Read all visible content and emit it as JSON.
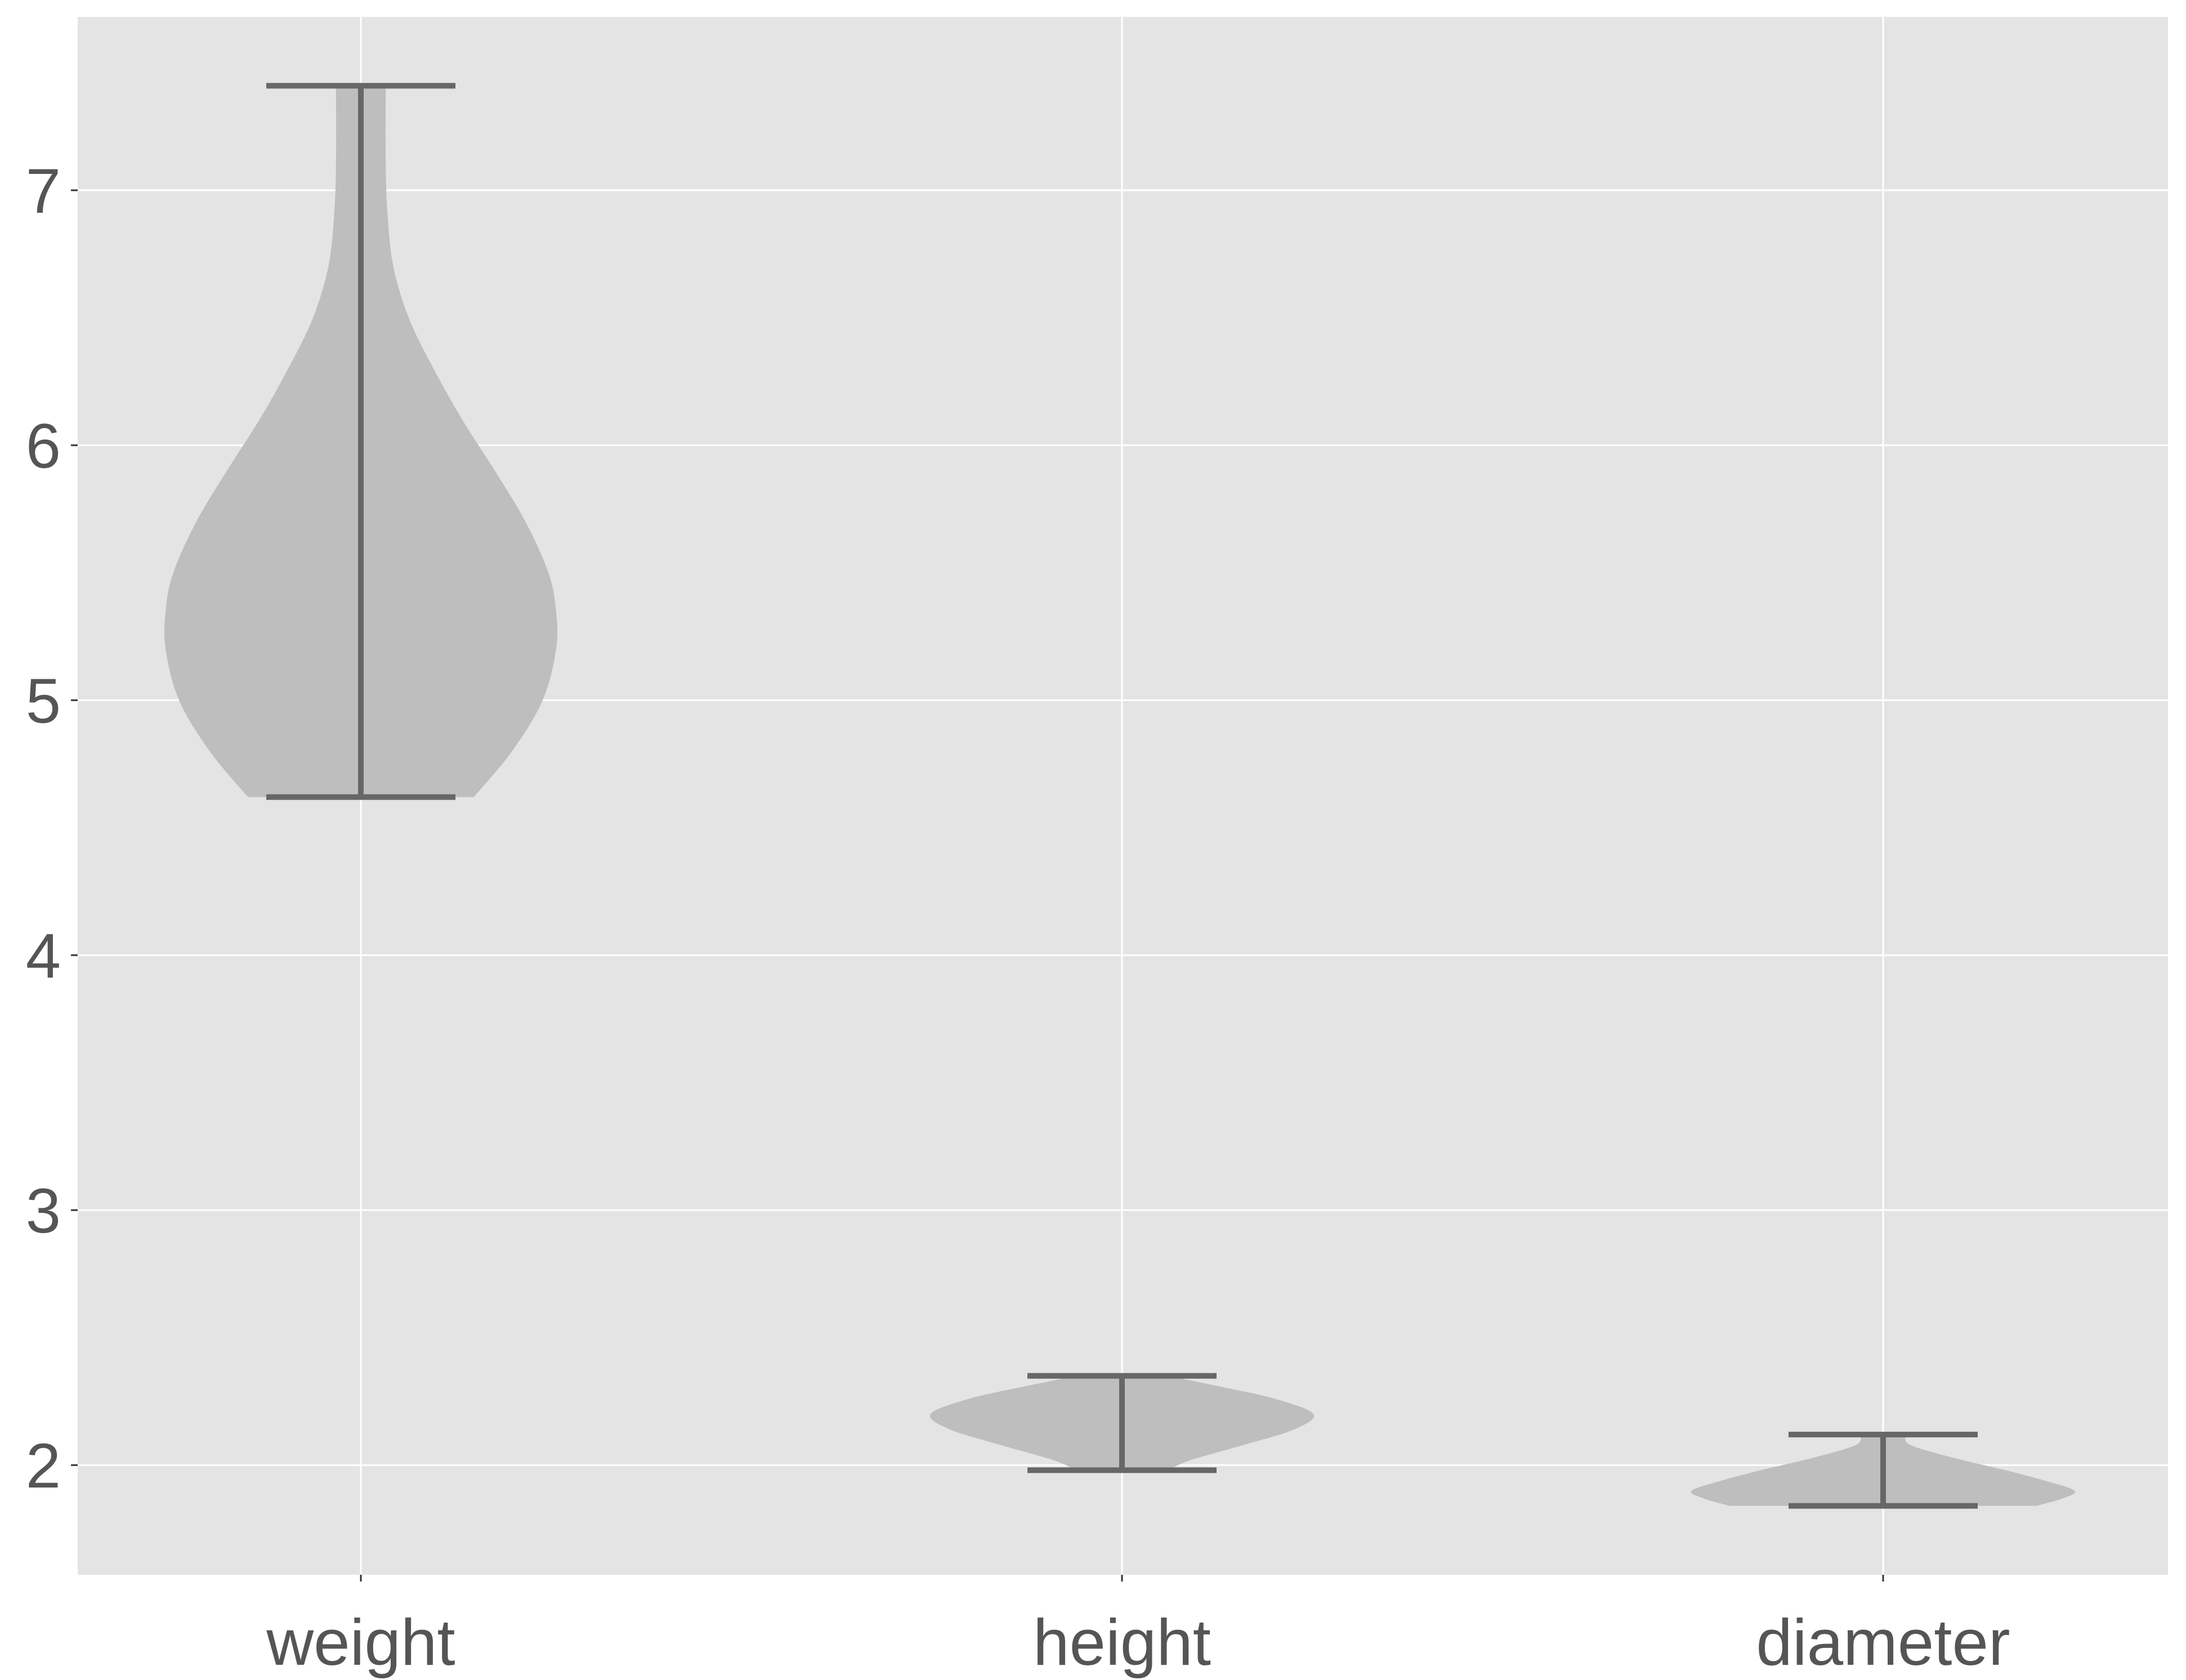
{
  "chart_data": {
    "type": "violin",
    "title": "",
    "xlabel": "",
    "ylabel": "",
    "categories": [
      "weight",
      "height",
      "diameter"
    ],
    "ylim": [
      1.57,
      7.68
    ],
    "y_ticks": [
      2,
      3,
      4,
      5,
      6,
      7
    ],
    "y_tick_labels": [
      "2",
      "3",
      "4",
      "5",
      "6",
      "7"
    ],
    "grid": true,
    "legend": "none",
    "series": [
      {
        "category": "weight",
        "min": 4.62,
        "max": 7.41,
        "density_profile": [
          [
            4.62,
            0.295
          ],
          [
            4.8,
            0.395
          ],
          [
            5.0,
            0.475
          ],
          [
            5.2,
            0.51
          ],
          [
            5.35,
            0.51
          ],
          [
            5.5,
            0.49
          ],
          [
            5.7,
            0.43
          ],
          [
            5.9,
            0.35
          ],
          [
            6.1,
            0.265
          ],
          [
            6.3,
            0.19
          ],
          [
            6.5,
            0.125
          ],
          [
            6.7,
            0.085
          ],
          [
            6.9,
            0.07
          ],
          [
            7.1,
            0.065
          ],
          [
            7.41,
            0.065
          ]
        ]
      },
      {
        "category": "height",
        "min": 1.98,
        "max": 2.35,
        "density_profile": [
          [
            1.98,
            0.12
          ],
          [
            2.02,
            0.18
          ],
          [
            2.08,
            0.32
          ],
          [
            2.14,
            0.45
          ],
          [
            2.2,
            0.5
          ],
          [
            2.26,
            0.4
          ],
          [
            2.31,
            0.25
          ],
          [
            2.35,
            0.12
          ]
        ]
      },
      {
        "category": "diameter",
        "min": 1.84,
        "max": 2.12,
        "density_profile": [
          [
            1.84,
            0.4
          ],
          [
            1.87,
            0.47
          ],
          [
            1.9,
            0.5
          ],
          [
            1.94,
            0.42
          ],
          [
            1.98,
            0.32
          ],
          [
            2.03,
            0.18
          ],
          [
            2.08,
            0.07
          ],
          [
            2.12,
            0.06
          ]
        ]
      }
    ],
    "colors": {
      "panel_background": "#e4e4e4",
      "grid": "#ffffff",
      "violin_fill": "#bebebe",
      "whisker": "#676767",
      "tick_text": "#555555",
      "tick_mark": "#333333"
    }
  }
}
